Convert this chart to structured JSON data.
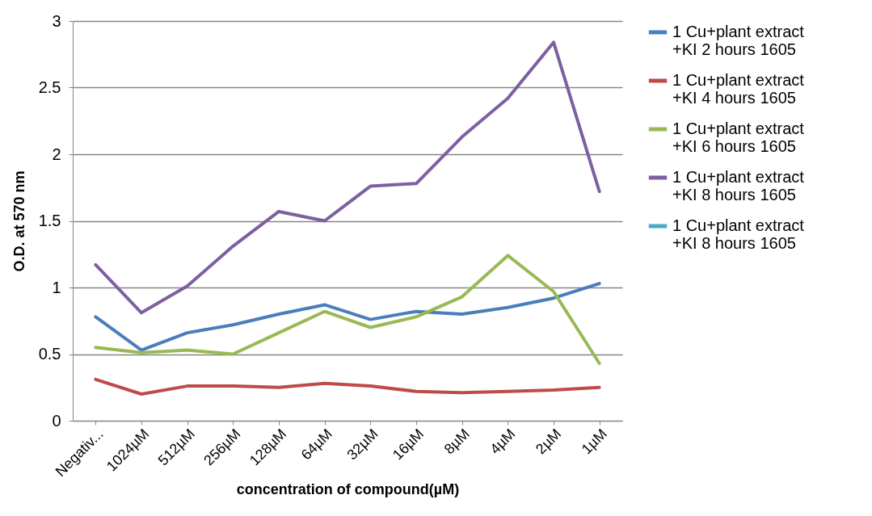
{
  "chart_data": {
    "type": "line",
    "xlabel": "concentration of compound(µM)",
    "ylabel": "O.D. at 570 nm",
    "categories": [
      "Negativ...",
      "1024µM",
      "512µM",
      "256µM",
      "128µM",
      "64µM",
      "32µM",
      "16µM",
      "8µM",
      "4µM",
      "2µM",
      "1µM"
    ],
    "series": [
      {
        "name": "1 Cu+plant extract +KI 2 hours 1605",
        "color": "#4a7ebb",
        "values": [
          0.78,
          0.53,
          0.66,
          0.72,
          0.8,
          0.87,
          0.76,
          0.82,
          0.8,
          0.85,
          0.92,
          1.03
        ]
      },
      {
        "name": "1 Cu+plant extract +KI 4 hours 1605",
        "color": "#be4b48",
        "values": [
          0.31,
          0.2,
          0.26,
          0.26,
          0.25,
          0.28,
          0.26,
          0.22,
          0.21,
          0.22,
          0.23,
          0.25
        ]
      },
      {
        "name": "1 Cu+plant extract +KI 6 hours 1605",
        "color": "#98b954",
        "values": [
          0.55,
          0.51,
          0.53,
          0.5,
          0.66,
          0.82,
          0.7,
          0.78,
          0.93,
          1.24,
          0.97,
          0.43
        ]
      },
      {
        "name": "1 Cu+plant extract +KI 8 hours 1605",
        "color": "#7d60a0",
        "values": [
          1.17,
          0.81,
          1.01,
          1.31,
          1.57,
          1.5,
          1.76,
          1.78,
          2.13,
          2.42,
          2.84,
          1.72
        ]
      },
      {
        "name": "1 Cu+plant extract +KI 8 hours 1605",
        "color": "#46aac5",
        "values": [
          null,
          null,
          null,
          null,
          null,
          null,
          null,
          null,
          null,
          null,
          null,
          null
        ]
      }
    ],
    "ylim": [
      0,
      3
    ],
    "yticks": [
      0,
      0.5,
      1,
      1.5,
      2,
      2.5,
      3
    ],
    "grid": "y",
    "legend": "right",
    "marker": "none",
    "line_style": "solid"
  }
}
